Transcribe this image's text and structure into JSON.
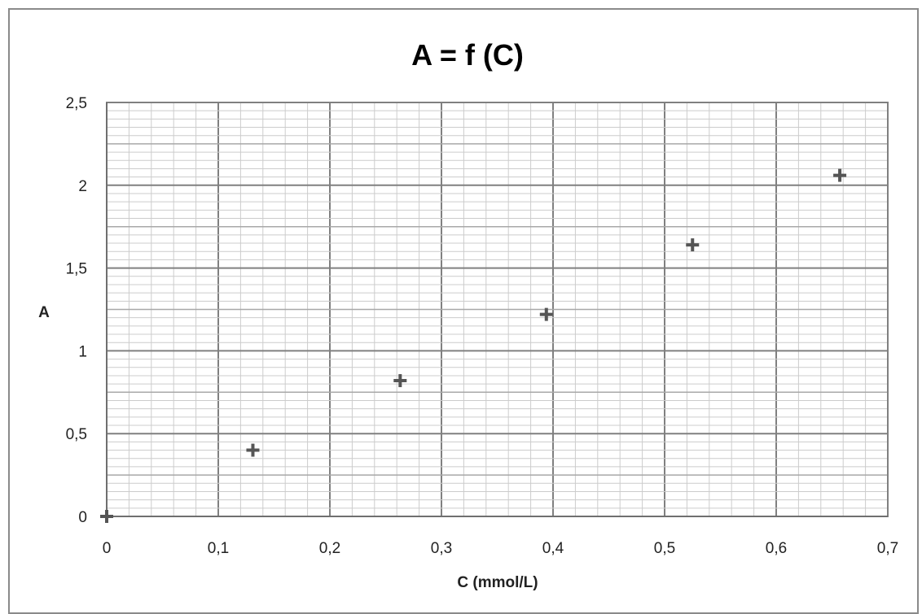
{
  "chart_data": {
    "type": "scatter",
    "title": "A = f (C)",
    "xlabel": "C (mmol/L)",
    "ylabel": "A",
    "xlim": [
      0,
      0.7
    ],
    "ylim": [
      0,
      2.5
    ],
    "grid": true,
    "x_ticks": [
      0,
      0.1,
      0.2,
      0.3,
      0.4,
      0.5,
      0.6,
      0.7
    ],
    "x_tick_labels": [
      "0",
      "0,1",
      "0,2",
      "0,3",
      "0,4",
      "0,5",
      "0,6",
      "0,7"
    ],
    "y_ticks": [
      0,
      0.5,
      1,
      1.5,
      2,
      2.5
    ],
    "y_tick_labels": [
      "0",
      "0,5",
      "1",
      "1,5",
      "2",
      "2,5"
    ],
    "marker": "plus",
    "colors": {
      "marker": "#555555",
      "major_grid": "#808080",
      "mid_grid": "#a8a8a8",
      "minor_grid": "#cccccc",
      "frame": "#8a8a8a"
    },
    "series": [
      {
        "x": [
          0,
          0.131,
          0.263,
          0.394,
          0.525,
          0.657
        ],
        "y": [
          0,
          0.4,
          0.82,
          1.22,
          1.64,
          2.06
        ]
      }
    ]
  }
}
